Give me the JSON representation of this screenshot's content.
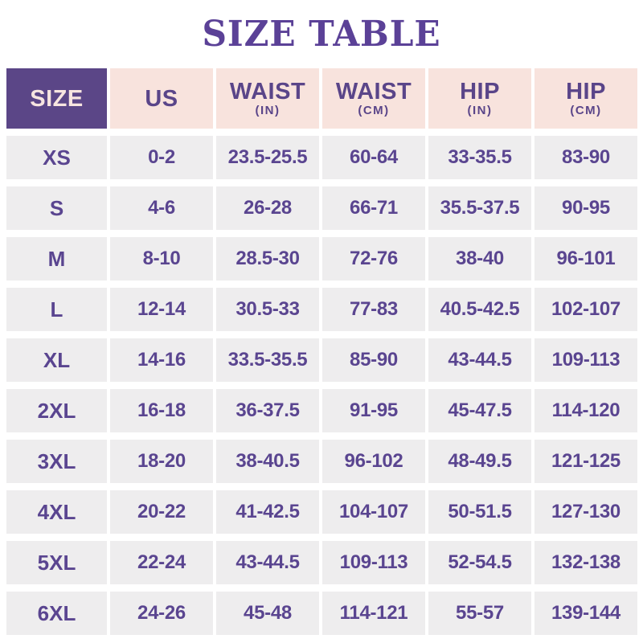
{
  "title": "SIZE TABLE",
  "colors": {
    "title_text": "#5b4197",
    "header_purple_bg": "#5b4687",
    "header_purple_text": "#f7e5e0",
    "header_pink_bg": "#f8e3dd",
    "header_pink_text": "#5a4589",
    "row_bg": "#eeedee",
    "cell_text": "#5a4590",
    "page_bg": "#ffffff"
  },
  "chart_data": {
    "type": "table",
    "title": "SIZE TABLE",
    "columns": [
      {
        "label": "SIZE",
        "sub": ""
      },
      {
        "label": "US",
        "sub": ""
      },
      {
        "label": "WAIST",
        "sub": "(IN)"
      },
      {
        "label": "WAIST",
        "sub": "(CM)"
      },
      {
        "label": "HIP",
        "sub": "(IN)"
      },
      {
        "label": "HIP",
        "sub": "(CM)"
      }
    ],
    "rows": [
      [
        "XS",
        "0-2",
        "23.5-25.5",
        "60-64",
        "33-35.5",
        "83-90"
      ],
      [
        "S",
        "4-6",
        "26-28",
        "66-71",
        "35.5-37.5",
        "90-95"
      ],
      [
        "M",
        "8-10",
        "28.5-30",
        "72-76",
        "38-40",
        "96-101"
      ],
      [
        "L",
        "12-14",
        "30.5-33",
        "77-83",
        "40.5-42.5",
        "102-107"
      ],
      [
        "XL",
        "14-16",
        "33.5-35.5",
        "85-90",
        "43-44.5",
        "109-113"
      ],
      [
        "2XL",
        "16-18",
        "36-37.5",
        "91-95",
        "45-47.5",
        "114-120"
      ],
      [
        "3XL",
        "18-20",
        "38-40.5",
        "96-102",
        "48-49.5",
        "121-125"
      ],
      [
        "4XL",
        "20-22",
        "41-42.5",
        "104-107",
        "50-51.5",
        "127-130"
      ],
      [
        "5XL",
        "22-24",
        "43-44.5",
        "109-113",
        "52-54.5",
        "132-138"
      ],
      [
        "6XL",
        "24-26",
        "45-48",
        "114-121",
        "55-57",
        "139-144"
      ]
    ]
  }
}
